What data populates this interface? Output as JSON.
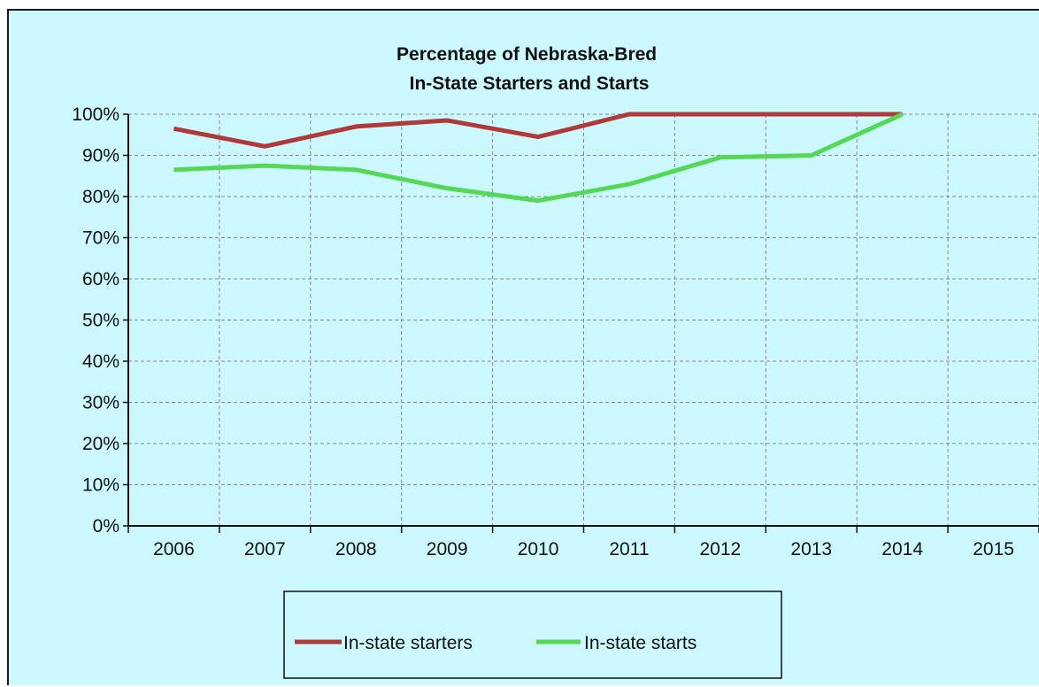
{
  "colors": {
    "background": "#ccf8ff",
    "grid": "#8a8a8a",
    "axis": "#111111"
  },
  "chart_data": {
    "type": "line",
    "title": "Percentage of Nebraska-Bred\nIn-State Starters and Starts",
    "title_lines": [
      "Percentage of Nebraska-Bred",
      "In-State Starters and Starts"
    ],
    "x": [
      "2006",
      "2007",
      "2008",
      "2009",
      "2010",
      "2011",
      "2012",
      "2013",
      "2014",
      "2015"
    ],
    "y_ticks": [
      "0%",
      "10%",
      "20%",
      "30%",
      "40%",
      "50%",
      "60%",
      "70%",
      "80%",
      "90%",
      "100%"
    ],
    "ylim": [
      0,
      100
    ],
    "grid": true,
    "grid_style": "dashed",
    "legend_position": "bottom",
    "series": [
      {
        "name": "In-state starters",
        "color": "#b03a3a",
        "values": [
          96.5,
          92.2,
          97.0,
          98.5,
          94.5,
          100,
          100,
          100,
          100,
          null
        ]
      },
      {
        "name": "In-state starts",
        "color": "#55d855",
        "values": [
          86.5,
          87.5,
          86.5,
          82.0,
          79.0,
          83.0,
          89.5,
          90.0,
          100,
          null
        ]
      }
    ]
  }
}
